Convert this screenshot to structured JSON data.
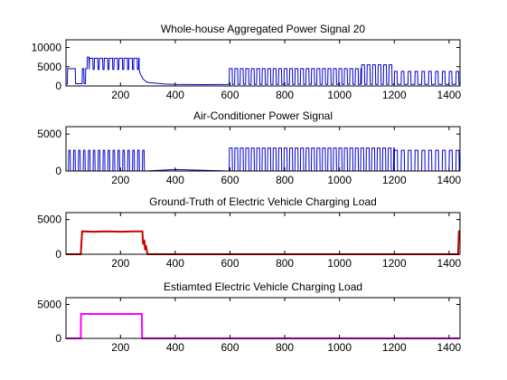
{
  "figure": {
    "background": "#ffffff"
  },
  "chart_data": [
    {
      "type": "line",
      "title": "Whole-house Aggregated Power Signal 20",
      "xlabel": "",
      "ylabel": "",
      "xlim": [
        1,
        1440
      ],
      "ylim": [
        0,
        12000
      ],
      "xticks": [
        200,
        400,
        600,
        800,
        1000,
        1200,
        1400
      ],
      "yticks": [
        0,
        5000,
        10000
      ],
      "grid": false,
      "series": [
        {
          "color": "#0000cc",
          "segments": [
            {
              "type": "raw",
              "x": [
                1,
                6,
                7,
                35,
                36,
                60,
                61,
                66,
                67,
                72,
                73,
                78,
                79,
                85,
                86
              ],
              "y": [
                500,
                500,
                4500,
                4500,
                600,
                600,
                4500,
                4500,
                600,
                600,
                4500,
                4500,
                7500,
                7500,
                4500
              ]
            },
            {
              "type": "pulse",
              "x_start": 86,
              "x_end": 268,
              "period": 18,
              "duty": 0.72,
              "high": 7200,
              "low": 4300
            },
            {
              "type": "raw",
              "x": [
                268,
                272,
                278,
                283,
                290,
                300,
                330,
                360,
                400,
                500,
                597
              ],
              "y": [
                4300,
                3200,
                2400,
                1800,
                1300,
                900,
                700,
                500,
                400,
                350,
                400
              ]
            },
            {
              "type": "pulse",
              "x_start": 597,
              "x_end": 1080,
              "period": 20,
              "duty": 0.55,
              "high": 4500,
              "low": 400
            },
            {
              "type": "pulse",
              "x_start": 1080,
              "x_end": 1200,
              "period": 20,
              "duty": 0.55,
              "high": 5500,
              "low": 400
            },
            {
              "type": "pulse",
              "x_start": 1200,
              "x_end": 1440,
              "period": 25,
              "duty": 0.4,
              "high": 3800,
              "low": 400
            }
          ]
        }
      ]
    },
    {
      "type": "line",
      "title": "Air-Conditioner Power Signal",
      "xlabel": "",
      "ylabel": "",
      "xlim": [
        1,
        1440
      ],
      "ylim": [
        0,
        6000
      ],
      "xticks": [
        200,
        400,
        600,
        800,
        1000,
        1200,
        1400
      ],
      "yticks": [
        0,
        5000
      ],
      "grid": false,
      "series": [
        {
          "color": "#0000cc",
          "segments": [
            {
              "type": "pulse",
              "x_start": 10,
              "x_end": 290,
              "period": 18,
              "duty": 0.35,
              "high": 2800,
              "low": 0
            },
            {
              "type": "raw",
              "x": [
                290,
                400,
                597
              ],
              "y": [
                0,
                200,
                0
              ]
            },
            {
              "type": "pulse",
              "x_start": 597,
              "x_end": 1200,
              "period": 20,
              "duty": 0.55,
              "high": 3100,
              "low": 0
            },
            {
              "type": "pulse",
              "x_start": 1200,
              "x_end": 1440,
              "period": 25,
              "duty": 0.45,
              "high": 2800,
              "low": 0
            }
          ]
        }
      ]
    },
    {
      "type": "line",
      "title": "Ground-Truth of Electric Vehicle Charging Load",
      "xlabel": "",
      "ylabel": "",
      "xlim": [
        1,
        1440
      ],
      "ylim": [
        0,
        6000
      ],
      "xticks": [
        200,
        400,
        600,
        800,
        1000,
        1200,
        1400
      ],
      "yticks": [
        0,
        5000
      ],
      "grid": false,
      "series": [
        {
          "color": "#cc0000",
          "line_width": 2,
          "segments": [
            {
              "type": "raw",
              "x": [
                1,
                55,
                60,
                100,
                150,
                200,
                250,
                280,
                283,
                287,
                290,
                293,
                297,
                300,
                1433,
                1436,
                1440
              ],
              "y": [
                0,
                0,
                3300,
                3250,
                3300,
                3250,
                3300,
                3300,
                1400,
                2100,
                600,
                1300,
                300,
                0,
                0,
                3300,
                3300
              ]
            }
          ]
        }
      ]
    },
    {
      "type": "line",
      "title": "Estiamted Electric Vehicle Charging Load",
      "xlabel": "",
      "ylabel": "",
      "xlim": [
        1,
        1440
      ],
      "ylim": [
        0,
        6000
      ],
      "xticks": [
        200,
        400,
        600,
        800,
        1000,
        1200,
        1400
      ],
      "yticks": [
        0,
        5000
      ],
      "grid": false,
      "series": [
        {
          "color": "#ff00ff",
          "line_width": 2,
          "segments": [
            {
              "type": "raw",
              "x": [
                1,
                55,
                56,
                278,
                279,
                1440
              ],
              "y": [
                0,
                0,
                3600,
                3600,
                0,
                0
              ]
            }
          ]
        }
      ]
    }
  ]
}
